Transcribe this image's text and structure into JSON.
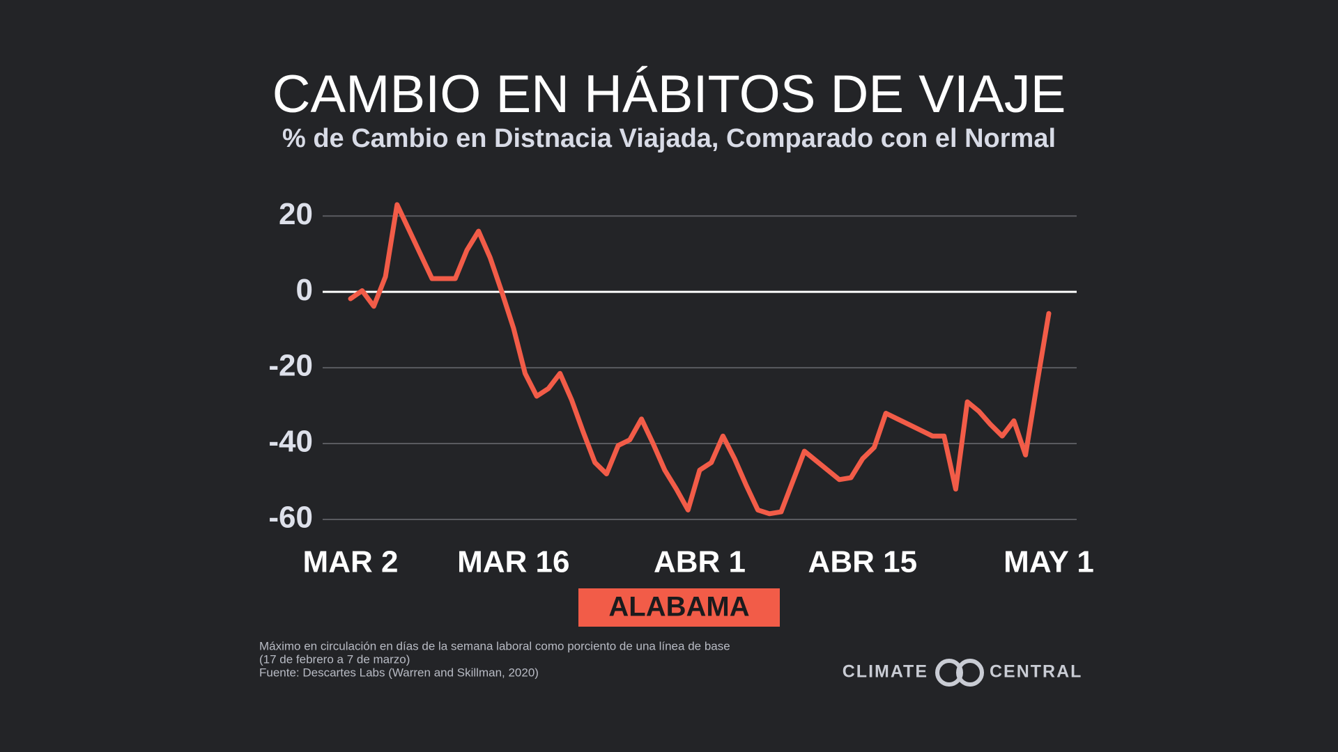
{
  "chart_data": {
    "type": "line",
    "title": "CAMBIO EN HÁBITOS DE VIAJE",
    "subtitle": "% de Cambio en Distnacia Viajada, Comparado con el Normal",
    "x": [
      0,
      1,
      2,
      3,
      4,
      5,
      6,
      7,
      8,
      9,
      10,
      11,
      12,
      13,
      14,
      15,
      16,
      17,
      18,
      19,
      20,
      21,
      22,
      23,
      24,
      25,
      26,
      27,
      28,
      29,
      30,
      31,
      32,
      33,
      34,
      35,
      36,
      37,
      38,
      39,
      40,
      41,
      42,
      43,
      44,
      45,
      46,
      47,
      48,
      49,
      50,
      51,
      52,
      53,
      54,
      55,
      56,
      57,
      58,
      59,
      60
    ],
    "series": [
      {
        "name": "ALABAMA",
        "color": "#f25c48",
        "values": [
          -1.8,
          0.3,
          -3.8,
          4,
          23,
          16.5,
          10,
          3.5,
          3.5,
          3.5,
          11,
          16,
          9,
          0,
          -9.5,
          -21.5,
          -27.5,
          -25.5,
          -21.5,
          -28.5,
          -37,
          -45,
          -48,
          -40.5,
          -39,
          -33.5,
          -40,
          -47,
          -52,
          -57.5,
          -47,
          -45,
          -38,
          -44,
          -51,
          -57.5,
          -58.5,
          -58,
          -50,
          -42,
          -44.5,
          -47,
          -49.5,
          -49,
          -44,
          -41,
          -32,
          -33.5,
          -35,
          -36.5,
          -38,
          -38,
          -52,
          -29,
          -31.5,
          -35,
          -38,
          -34,
          -43,
          -24,
          -5.7
        ]
      }
    ],
    "xlim": [
      0,
      60
    ],
    "xticks": [
      {
        "value": 0,
        "label": "MAR 2"
      },
      {
        "value": 14,
        "label": "MAR 16"
      },
      {
        "value": 30,
        "label": "ABR 1"
      },
      {
        "value": 44,
        "label": "ABR 15"
      },
      {
        "value": 60,
        "label": "MAY 1"
      }
    ],
    "ylim": [
      -60,
      25
    ],
    "yticks": [
      20,
      0,
      -20,
      -40,
      -60
    ],
    "grid": true,
    "notes": [
      "Máximo en circulación en días de la semana laboral como porciento de una línea de base",
      "(17 de febrero a 7 de marzo)",
      "Fuente: Descartes Labs (Warren and Skillman, 2020)"
    ],
    "logo": [
      "CLIMATE",
      "CENTRAL"
    ]
  }
}
